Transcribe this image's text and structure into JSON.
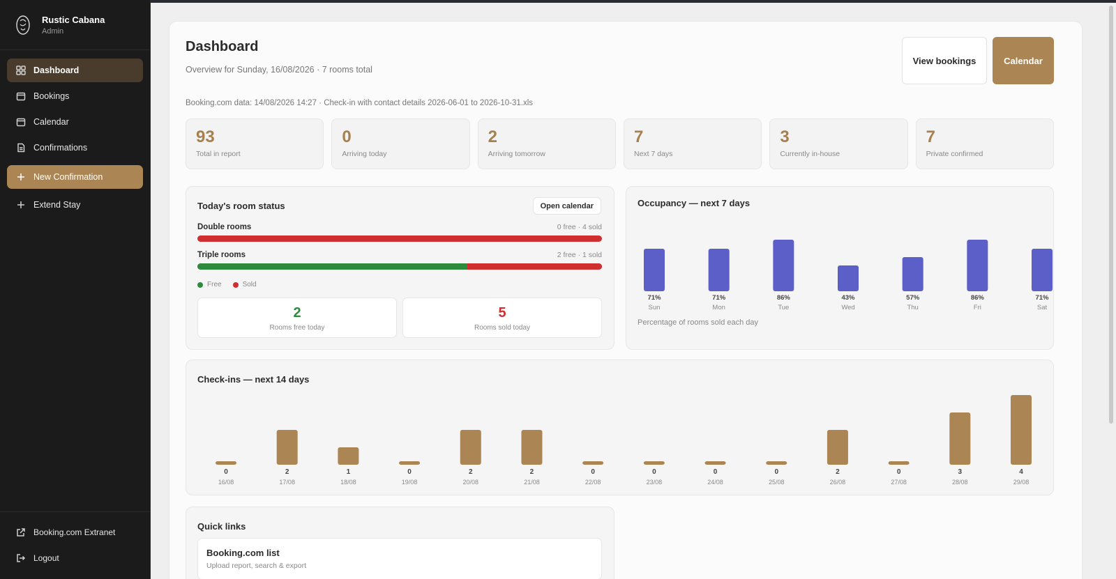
{
  "brand": {
    "name": "Rustic Cabana",
    "role": "Admin"
  },
  "sidebar": {
    "items": [
      {
        "label": "Dashboard",
        "icon": "grid-icon"
      },
      {
        "label": "Bookings",
        "icon": "calendar-icon"
      },
      {
        "label": "Calendar",
        "icon": "calendar-icon"
      },
      {
        "label": "Confirmations",
        "icon": "document-icon"
      },
      {
        "label": "New Confirmation",
        "icon": "plus-icon"
      },
      {
        "label": "Extend Stay",
        "icon": "plus-icon"
      }
    ],
    "bottom": [
      {
        "label": "Booking.com Extranet",
        "icon": "external-link-icon"
      },
      {
        "label": "Logout",
        "icon": "logout-icon"
      }
    ]
  },
  "header": {
    "title": "Dashboard",
    "subtitle": "Overview for Sunday, 16/08/2026 · 7 rooms total",
    "view_bookings": "View bookings",
    "calendar": "Calendar",
    "data_note": "Booking.com data: 14/08/2026 14:27 · Check-in with contact details 2026-06-01 to 2026-10-31.xls"
  },
  "stats": [
    {
      "value": "93",
      "label": "Total in report"
    },
    {
      "value": "0",
      "label": "Arriving today"
    },
    {
      "value": "2",
      "label": "Arriving tomorrow"
    },
    {
      "value": "7",
      "label": "Next 7 days"
    },
    {
      "value": "3",
      "label": "Currently in-house"
    },
    {
      "value": "7",
      "label": "Private confirmed"
    }
  ],
  "room_status": {
    "title": "Today's room status",
    "open_calendar": "Open calendar",
    "rows": [
      {
        "name": "Double rooms",
        "count": "0 free · 4 sold",
        "free": 0,
        "sold": 4
      },
      {
        "name": "Triple rooms",
        "count": "2 free · 1 sold",
        "free": 2,
        "sold": 1
      }
    ],
    "legend_free": "Free",
    "legend_sold": "Sold",
    "rooms_free_value": "2",
    "rooms_free_label": "Rooms free today",
    "rooms_sold_value": "5",
    "rooms_sold_label": "Rooms sold today"
  },
  "occupancy": {
    "title": "Occupancy — next 7 days",
    "caption": "Percentage of rooms sold each day"
  },
  "checkins": {
    "title": "Check-ins — next 14 days"
  },
  "quick_links": {
    "title": "Quick links",
    "items": [
      {
        "title": "Booking.com list",
        "subtitle": "Upload report, search & export"
      }
    ]
  },
  "colors": {
    "accent": "#ab8553",
    "occupancy_bar": "#5b5fc7",
    "free": "#2e8a3d",
    "sold": "#cf2f2f"
  },
  "chart_data": [
    {
      "type": "bar",
      "categories": [
        "Sun",
        "Mon",
        "Tue",
        "Wed",
        "Thu",
        "Fri",
        "Sat"
      ],
      "values": [
        71,
        71,
        86,
        43,
        57,
        86,
        71
      ],
      "value_labels": [
        "71%",
        "71%",
        "86%",
        "43%",
        "57%",
        "86%",
        "71%"
      ],
      "ylim": [
        0,
        100
      ]
    },
    {
      "type": "bar",
      "categories": [
        "16/08",
        "17/08",
        "18/08",
        "19/08",
        "20/08",
        "21/08",
        "22/08",
        "23/08",
        "24/08",
        "25/08",
        "26/08",
        "27/08",
        "28/08",
        "29/08"
      ],
      "values": [
        0,
        2,
        1,
        0,
        2,
        2,
        0,
        0,
        0,
        0,
        2,
        0,
        3,
        4
      ],
      "ylim": [
        0,
        4
      ]
    }
  ]
}
